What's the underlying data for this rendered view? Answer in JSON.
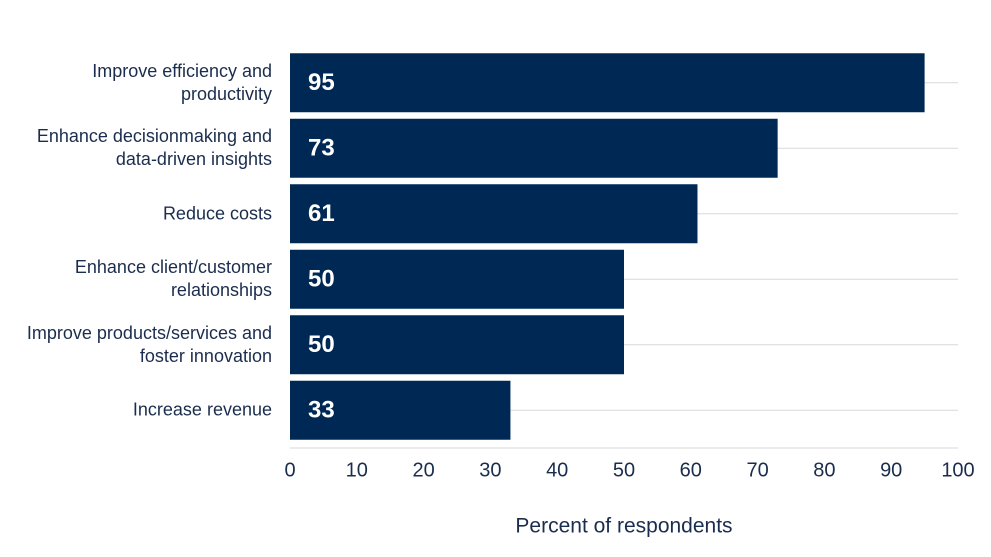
{
  "chart_data": {
    "type": "bar",
    "orientation": "horizontal",
    "categories": [
      "Improve efficiency and productivity",
      "Enhance decisionmaking and data-driven insights",
      "Reduce costs",
      "Enhance client/customer relationships",
      "Improve products/services and foster innovation",
      "Increase revenue"
    ],
    "values": [
      95,
      73,
      61,
      50,
      50,
      33
    ],
    "color": "#002855",
    "x_label": "Percent of respondents",
    "xlim": [
      0,
      100
    ],
    "xticks": [
      0,
      10,
      20,
      30,
      40,
      50,
      60,
      70,
      80,
      90,
      100
    ],
    "grid": true
  }
}
